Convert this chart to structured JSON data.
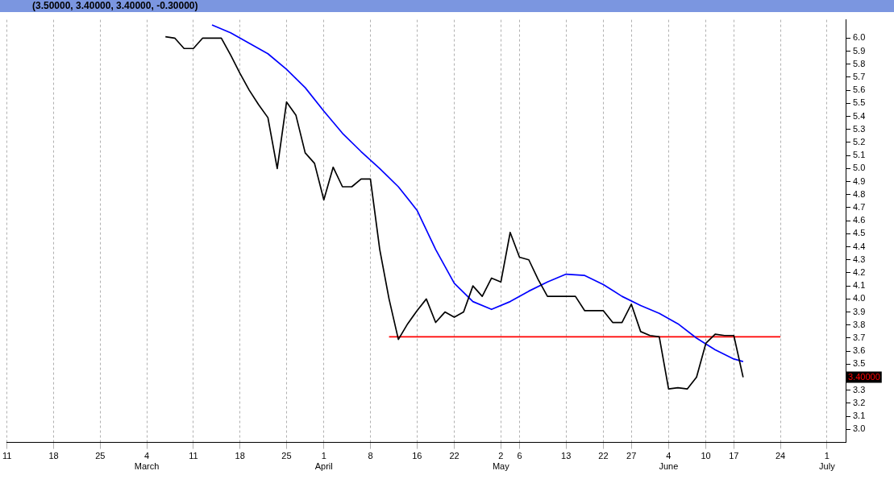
{
  "chart_data": {
    "type": "line",
    "title": "(3.50000, 3.40000, 3.40000, -0.30000)",
    "categories": [
      "11",
      null,
      null,
      null,
      null,
      "18",
      null,
      null,
      null,
      null,
      "25",
      null,
      null,
      null,
      null,
      "4\nMarch",
      null,
      null,
      null,
      null,
      "11",
      null,
      null,
      null,
      null,
      "18",
      null,
      null,
      null,
      null,
      "25",
      null,
      null,
      null,
      "1\nApril",
      null,
      null,
      null,
      null,
      "8",
      null,
      null,
      null,
      null,
      "16",
      null,
      null,
      null,
      "22",
      null,
      null,
      null,
      null,
      "2\nMay",
      null,
      "6",
      null,
      null,
      null,
      null,
      "13",
      null,
      null,
      null,
      "22",
      null,
      null,
      "27",
      null,
      null,
      null,
      "4\nJune",
      null,
      null,
      null,
      "10",
      null,
      null,
      "17",
      null,
      null,
      null,
      null,
      "24",
      null,
      null,
      null,
      null,
      "1\nJuly",
      null,
      null
    ],
    "series": [
      {
        "type": "line",
        "color": "#000000",
        "values": [
          null,
          null,
          null,
          null,
          null,
          null,
          null,
          null,
          null,
          null,
          null,
          null,
          null,
          null,
          null,
          null,
          null,
          6.01,
          6.0,
          5.92,
          5.92,
          6.0,
          6.0,
          6.0,
          5.87,
          5.73,
          5.6,
          5.49,
          5.39,
          5.0,
          5.51,
          5.41,
          5.12,
          5.04,
          4.76,
          5.01,
          4.86,
          4.86,
          4.92,
          4.92,
          4.38,
          4.0,
          3.69,
          3.81,
          3.91,
          4.0,
          3.82,
          3.9,
          3.86,
          3.9,
          4.1,
          4.02,
          4.16,
          4.13,
          4.51,
          4.32,
          4.3,
          4.15,
          4.02,
          4.02,
          4.02,
          4.02,
          3.91,
          3.91,
          3.91,
          3.82,
          3.82,
          3.96,
          3.75,
          3.72,
          3.71,
          3.31,
          3.32,
          3.31,
          3.4,
          3.66,
          3.73,
          3.72,
          3.72,
          3.4,
          null,
          null,
          null,
          null,
          null,
          null,
          null,
          null,
          null,
          null,
          null
        ]
      },
      {
        "type": "line",
        "color": "#0000ff",
        "values": [
          null,
          null,
          null,
          null,
          null,
          null,
          null,
          null,
          null,
          null,
          null,
          null,
          null,
          null,
          null,
          null,
          null,
          null,
          null,
          null,
          null,
          null,
          6.1,
          null,
          6.04,
          null,
          5.96,
          null,
          5.88,
          null,
          5.76,
          null,
          5.62,
          null,
          5.44,
          null,
          5.27,
          null,
          5.13,
          null,
          5.0,
          null,
          4.86,
          null,
          4.68,
          null,
          4.38,
          null,
          4.12,
          null,
          3.98,
          null,
          3.92,
          null,
          3.98,
          null,
          4.06,
          null,
          4.13,
          null,
          4.19,
          null,
          4.18,
          null,
          4.11,
          null,
          4.02,
          null,
          3.95,
          null,
          3.89,
          null,
          3.81,
          null,
          3.7,
          null,
          3.61,
          null,
          3.54,
          3.52,
          null,
          null,
          null,
          null,
          null,
          null,
          null,
          null,
          null,
          null,
          null
        ]
      },
      {
        "type": "line",
        "color": "#ff0000",
        "values": [
          null,
          null,
          null,
          null,
          null,
          null,
          null,
          null,
          null,
          null,
          null,
          null,
          null,
          null,
          null,
          null,
          null,
          null,
          null,
          null,
          null,
          null,
          null,
          null,
          null,
          null,
          null,
          null,
          null,
          null,
          null,
          null,
          null,
          null,
          null,
          null,
          null,
          null,
          null,
          null,
          null,
          3.71,
          null,
          null,
          null,
          null,
          null,
          null,
          null,
          null,
          null,
          null,
          null,
          null,
          null,
          null,
          null,
          null,
          null,
          null,
          null,
          null,
          null,
          null,
          null,
          null,
          null,
          null,
          null,
          null,
          null,
          null,
          null,
          null,
          null,
          null,
          null,
          null,
          null,
          null,
          null,
          null,
          null,
          3.71,
          null,
          null,
          null,
          null,
          null,
          null,
          null
        ]
      }
    ],
    "ylim": [
      2.9,
      6.14
    ],
    "yticks": [
      {
        "value": 3.0,
        "label": "3.0"
      },
      3.1,
      3.2,
      3.3,
      {
        "value": 3.4,
        "label": null
      },
      3.5,
      3.6,
      3.7,
      3.8,
      3.9,
      {
        "value": 4.0,
        "label": "4.0"
      },
      4.1,
      4.2,
      4.3,
      4.4,
      4.5,
      4.6,
      4.7,
      4.8,
      4.9,
      {
        "value": 5.0,
        "label": "5.0"
      },
      5.1,
      5.2,
      5.3,
      5.4,
      5.5,
      5.6,
      5.7,
      5.8,
      5.9,
      {
        "value": 6.0,
        "label": "6.0"
      }
    ],
    "annotations": [
      {
        "text": "3.40000",
        "y": 3.4
      }
    ],
    "grid": "x",
    "legend": false,
    "marker": "none",
    "line_style": "solid"
  }
}
